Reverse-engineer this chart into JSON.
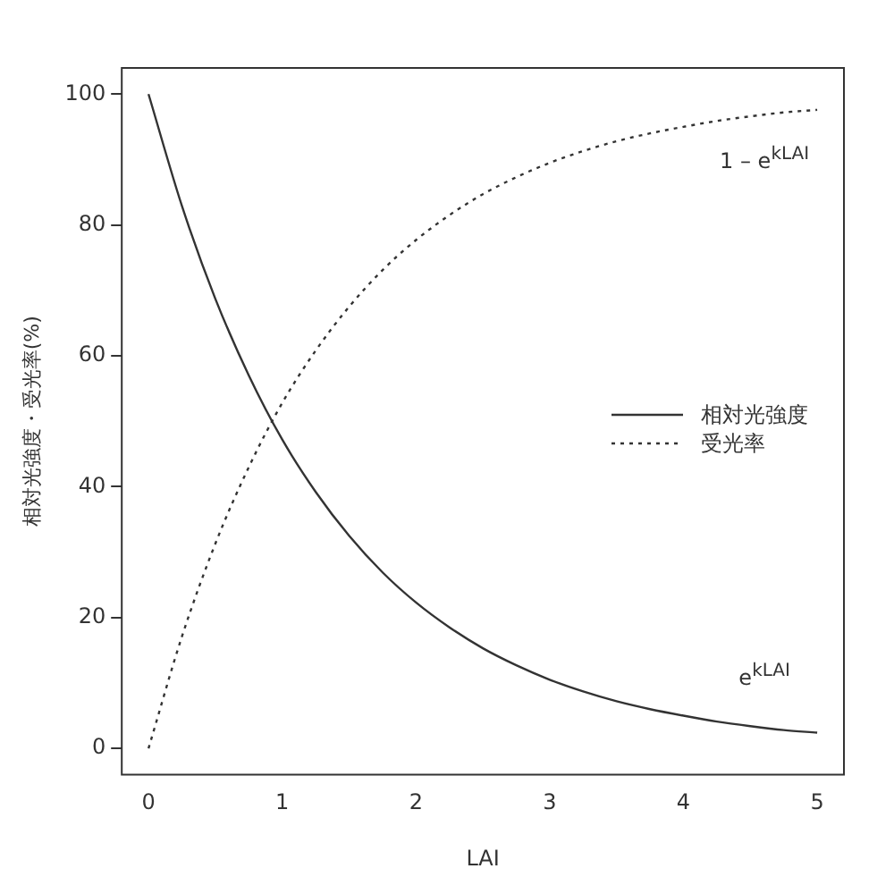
{
  "chart_data": {
    "type": "line",
    "xlabel": "LAI",
    "ylabel": "相対光強度・受光率(%)",
    "x": [
      0,
      0.25,
      0.5,
      0.75,
      1,
      1.25,
      1.5,
      1.75,
      2,
      2.25,
      2.5,
      2.75,
      3,
      3.25,
      3.5,
      3.75,
      4,
      4.25,
      4.5,
      4.75,
      5
    ],
    "series": [
      {
        "name": "相対光強度",
        "color": "#333333",
        "line_style": "solid",
        "values": [
          100,
          82.9,
          68.7,
          57.0,
          47.2,
          39.2,
          32.5,
          26.9,
          22.3,
          18.5,
          15.3,
          12.7,
          10.5,
          8.7,
          7.2,
          6.0,
          5.0,
          4.1,
          3.4,
          2.8,
          2.4
        ]
      },
      {
        "name": "受光率",
        "color": "#333333",
        "line_style": "dotted",
        "values": [
          0,
          17.1,
          31.3,
          43.0,
          52.8,
          60.8,
          67.5,
          73.1,
          77.7,
          81.5,
          84.7,
          87.3,
          89.5,
          91.3,
          92.8,
          94.0,
          95.0,
          95.9,
          96.6,
          97.2,
          97.6
        ]
      }
    ],
    "xlim": [
      -0.2,
      5.2
    ],
    "xticks": [
      0,
      1,
      2,
      3,
      4,
      5
    ],
    "ylim": [
      -4,
      104
    ],
    "yticks": [
      0,
      20,
      40,
      60,
      80,
      100
    ],
    "grid": false,
    "legend": "right",
    "marker": "none",
    "annotations": [
      "1 – e$^{kLAI}$",
      "e$^{kLAI}$"
    ]
  }
}
